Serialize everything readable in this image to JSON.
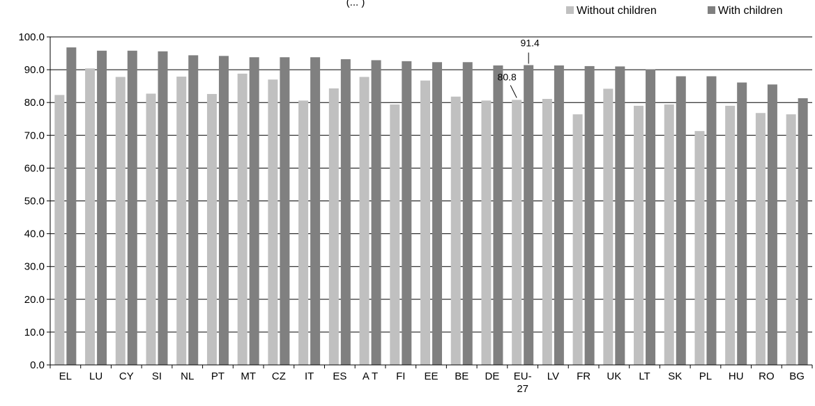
{
  "chart_data": {
    "type": "bar",
    "title_fragment": "(... )",
    "categories": [
      "EL",
      "LU",
      "CY",
      "SI",
      "NL",
      "PT",
      "MT",
      "CZ",
      "IT",
      "ES",
      "AT",
      "FI",
      "EE",
      "BE",
      "DE",
      "EU-27",
      "LV",
      "FR",
      "UK",
      "LT",
      "SK",
      "PL",
      "HU",
      "RO",
      "BG"
    ],
    "category_labels": [
      "EL",
      "LU",
      "CY",
      "SI",
      "NL",
      "PT",
      "MT",
      "CZ",
      "IT",
      "ES",
      "A T",
      "FI",
      "EE",
      "BE",
      "DE",
      "EU-\n27",
      "LV",
      "FR",
      "UK",
      "LT",
      "SK",
      "PL",
      "HU",
      "RO",
      "BG"
    ],
    "series": [
      {
        "name": "Without children",
        "color": "#c0c0c0",
        "values": [
          82.3,
          90.4,
          87.8,
          82.7,
          87.9,
          82.6,
          88.8,
          87.0,
          80.6,
          84.3,
          87.8,
          79.4,
          86.7,
          81.8,
          80.6,
          80.8,
          81.1,
          76.4,
          84.2,
          79.0,
          79.4,
          71.3,
          79.0,
          76.8,
          76.4
        ]
      },
      {
        "name": "With children",
        "color": "#808080",
        "values": [
          96.8,
          95.8,
          95.8,
          95.6,
          94.4,
          94.2,
          93.8,
          93.8,
          93.8,
          93.2,
          92.9,
          92.6,
          92.3,
          92.3,
          91.3,
          91.4,
          91.3,
          91.1,
          91.0,
          90.1,
          88.0,
          88.0,
          86.1,
          85.5,
          81.3
        ]
      }
    ],
    "annotations": [
      {
        "category": "EU-27",
        "series": "With children",
        "label": "91.4"
      },
      {
        "category": "EU-27",
        "series": "Without children",
        "label": "80.8"
      }
    ],
    "y_ticks": [
      "0.0",
      "10.0",
      "20.0",
      "30.0",
      "40.0",
      "50.0",
      "60.0",
      "70.0",
      "80.0",
      "90.0",
      "100.0"
    ],
    "ylim": [
      0,
      100
    ],
    "grid": true,
    "legend_position": "top-right"
  }
}
